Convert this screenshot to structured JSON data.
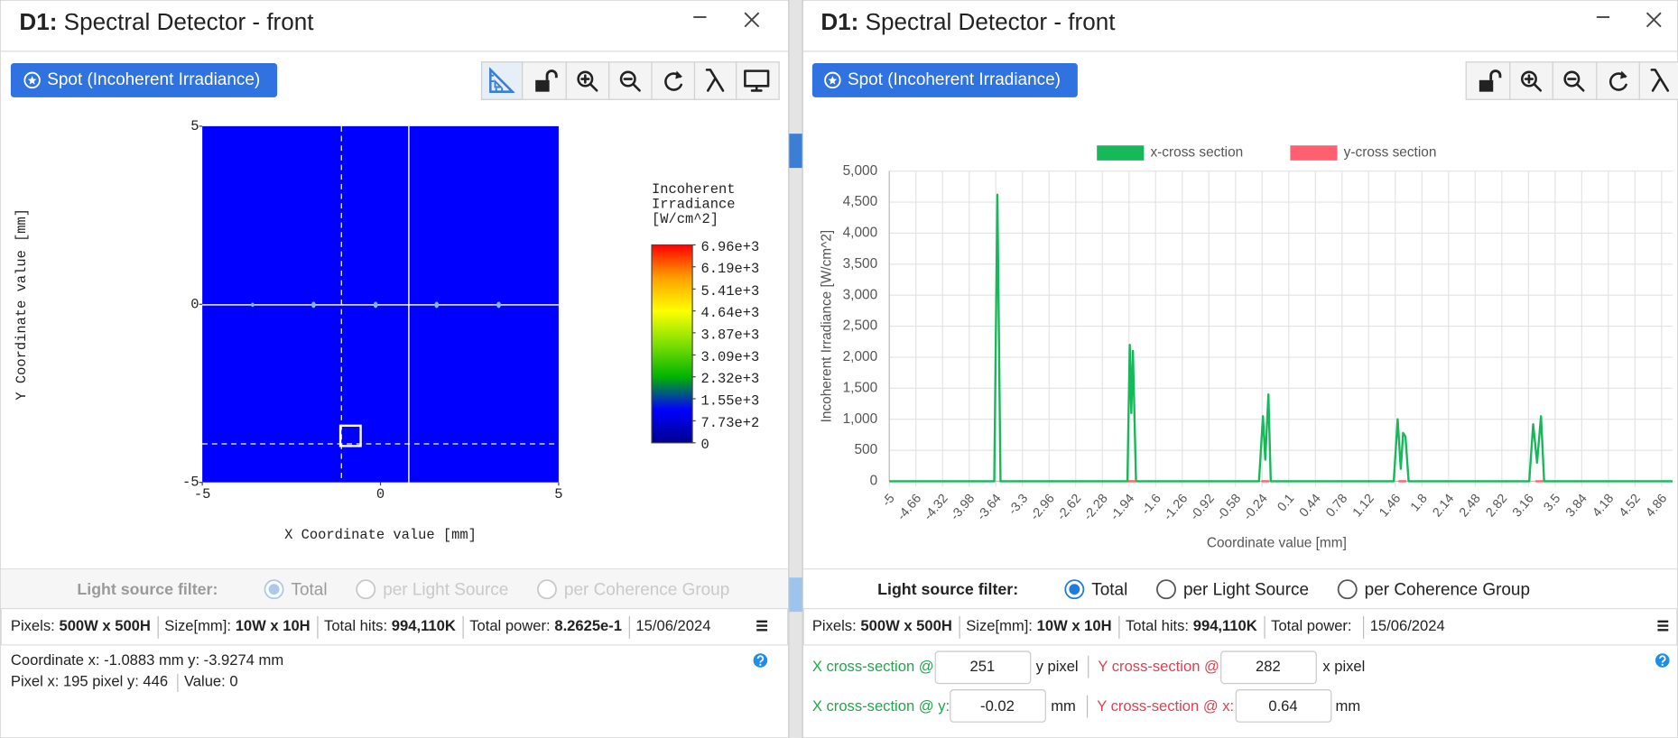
{
  "chart_data": [
    {
      "type": "heatmap",
      "xlabel": "X Coordinate value [mm]",
      "ylabel": "Y Coordinate value [mm]",
      "xlim": [
        -5,
        5
      ],
      "ylim": [
        -5,
        5
      ],
      "xticks": [
        -5,
        0,
        5
      ],
      "yticks": [
        -5,
        0,
        5
      ],
      "fill": "#0000ff",
      "colorbar": {
        "title": [
          "Incoherent",
          "Irradiance",
          "[W/cm^2]"
        ],
        "lim": [
          0,
          6960
        ],
        "colors": [
          "#00008f",
          "#0000ff",
          "#00b400",
          "#7fe000",
          "#ffff00",
          "#ffa000",
          "#ff0000"
        ],
        "ticks": [
          {
            "value": 6960,
            "label": "6.96e+3"
          },
          {
            "value": 6190,
            "label": "6.19e+3"
          },
          {
            "value": 5410,
            "label": "5.41e+3"
          },
          {
            "value": 4640,
            "label": "4.64e+3"
          },
          {
            "value": 3870,
            "label": "3.87e+3"
          },
          {
            "value": 3090,
            "label": "3.09e+3"
          },
          {
            "value": 2320,
            "label": "2.32e+3"
          },
          {
            "value": 1550,
            "label": "1.55e+3"
          },
          {
            "value": 773,
            "label": "7.73e+2"
          },
          0
        ]
      }
    },
    {
      "type": "line",
      "xlabel": "Coordinate value [mm]",
      "ylabel": "Incoherent Irradiance [W/cm^2]",
      "xlim": [
        -5,
        5
      ],
      "xticks": [
        -5,
        -4.66,
        -4.32,
        -3.98,
        -3.64,
        -3.3,
        -2.96,
        -2.62,
        -2.28,
        -1.94,
        -1.6,
        -1.26,
        -0.92,
        -0.58,
        -0.24,
        0.1,
        0.44,
        0.78,
        1.12,
        1.46,
        1.8,
        2.14,
        2.48,
        2.82,
        3.16,
        3.5,
        3.84,
        4.18,
        4.52,
        4.86
      ],
      "ylim": [
        0,
        5000
      ],
      "yticks": [
        0,
        500,
        {
          "value": 1000,
          "label": "1,000"
        },
        {
          "value": 1500,
          "label": "1,500"
        },
        {
          "value": 2000,
          "label": "2,000"
        },
        {
          "value": 2500,
          "label": "2,500"
        },
        {
          "value": 3000,
          "label": "3,000"
        },
        {
          "value": 3500,
          "label": "3,500"
        },
        {
          "value": 4000,
          "label": "4,000"
        },
        {
          "value": 4500,
          "label": "4,500"
        },
        {
          "value": 5000,
          "label": "5,000"
        }
      ],
      "grid": true,
      "legend": "top",
      "series": [
        {
          "name": "x-cross section",
          "color": "#16b85a",
          "x": [
            -5,
            -3.66,
            -3.62,
            -3.58,
            -1.96,
            -1.93,
            -1.91,
            -1.89,
            -1.85,
            -0.28,
            -0.23,
            -0.2,
            -0.16,
            -0.13,
            1.44,
            1.49,
            1.53,
            1.56,
            1.59,
            1.63,
            3.17,
            3.22,
            3.27,
            3.32,
            3.36,
            5
          ],
          "values": [
            0,
            0,
            4620,
            0,
            0,
            2200,
            1100,
            2100,
            0,
            0,
            1050,
            350,
            1400,
            0,
            0,
            1000,
            200,
            780,
            720,
            0,
            0,
            920,
            300,
            1050,
            0,
            0
          ]
        },
        {
          "name": "y-cross section",
          "color": "#ff6070",
          "x": [
            -1.95,
            -1.85,
            -1.8,
            -0.25,
            -0.15,
            -0.1,
            1.5,
            1.6,
            1.65,
            3.25,
            3.35,
            3.4
          ],
          "values": [
            0,
            0,
            null,
            0,
            0,
            null,
            0,
            0,
            null,
            0,
            0,
            null
          ]
        }
      ]
    }
  ],
  "left_window": {
    "title_bold": "D1:",
    "title": "Spectral Detector - front",
    "mode_button": "Spot (Incoherent Irradiance)",
    "filter": {
      "label": "Light source filter:",
      "options": [
        "Total",
        "per Light Source",
        "per Coherence Group"
      ],
      "selected": 0
    },
    "info_bar": [
      {
        "label": "Pixels:",
        "value": "500W x 500H"
      },
      {
        "label": "Size[mm]:",
        "value": "10W x 10H"
      },
      {
        "label": "Total hits:",
        "value": "994,110K"
      },
      {
        "label": "Total power:",
        "value": "8.2625e-1"
      },
      {
        "value": "15/06/2024"
      }
    ],
    "coordinate": "Coordinate x: -1.0883 mm y: -3.9274 mm",
    "pixel": "Pixel x: 195 pixel y: 446",
    "value": "Value: 0"
  },
  "right_window": {
    "title_bold": "D1:",
    "title": "Spectral Detector - front",
    "mode_button": "Spot (Incoherent Irradiance)",
    "filter": {
      "label": "Light source filter:",
      "options": [
        "Total",
        "per Light Source",
        "per Coherence Group"
      ],
      "selected": 0
    },
    "info_bar": [
      {
        "label": "Pixels:",
        "value": "500W x 500H"
      },
      {
        "label": "Size[mm]:",
        "value": "10W x 10H"
      },
      {
        "label": "Total hits:",
        "value": "994,110K"
      },
      {
        "label": "Total power:"
      },
      {
        "value": "15/06/2024"
      }
    ],
    "cross_section": {
      "x_label": "X cross-section @",
      "x_value": "251",
      "x_unit": "y pixel",
      "y_label": "Y cross-section @",
      "y_value": "282",
      "y_unit": "x pixel",
      "x_mm_label": "X cross-section @ y:",
      "x_mm_value": "-0.02",
      "x_mm_unit": "mm",
      "y_mm_label": "Y cross-section @ x:",
      "y_mm_value": "0.64",
      "y_mm_unit": "mm"
    }
  }
}
